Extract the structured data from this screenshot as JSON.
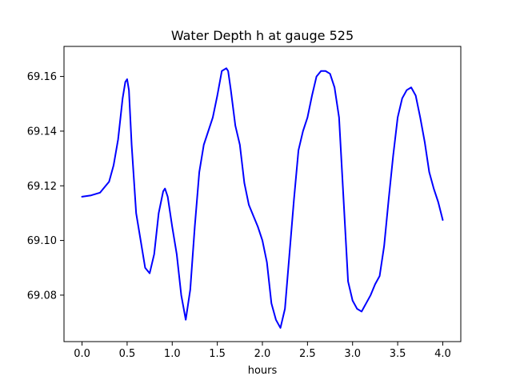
{
  "chart_data": {
    "type": "line",
    "title": "Water Depth h at gauge 525",
    "xlabel": "hours",
    "ylabel": "",
    "xlim": [
      -0.2,
      4.2
    ],
    "ylim": [
      69.063,
      69.171
    ],
    "x_ticks": [
      0.0,
      0.5,
      1.0,
      1.5,
      2.0,
      2.5,
      3.0,
      3.5,
      4.0
    ],
    "x_tick_labels": [
      "0.0",
      "0.5",
      "1.0",
      "1.5",
      "2.0",
      "2.5",
      "3.0",
      "3.5",
      "4.0"
    ],
    "y_ticks": [
      69.08,
      69.1,
      69.12,
      69.14,
      69.16
    ],
    "y_tick_labels": [
      "69.08",
      "69.10",
      "69.12",
      "69.14",
      "69.16"
    ],
    "grid": false,
    "legend": "none",
    "series": [
      {
        "color": "#0000ff",
        "x": [
          0.0,
          0.1,
          0.2,
          0.3,
          0.35,
          0.4,
          0.45,
          0.48,
          0.5,
          0.52,
          0.55,
          0.6,
          0.65,
          0.7,
          0.75,
          0.8,
          0.85,
          0.9,
          0.92,
          0.95,
          1.0,
          1.05,
          1.1,
          1.15,
          1.2,
          1.25,
          1.3,
          1.35,
          1.4,
          1.45,
          1.5,
          1.55,
          1.6,
          1.62,
          1.65,
          1.7,
          1.75,
          1.8,
          1.85,
          1.9,
          1.95,
          2.0,
          2.05,
          2.1,
          2.15,
          2.2,
          2.25,
          2.3,
          2.35,
          2.4,
          2.45,
          2.5,
          2.55,
          2.6,
          2.65,
          2.7,
          2.75,
          2.8,
          2.85,
          2.9,
          2.95,
          3.0,
          3.05,
          3.1,
          3.15,
          3.2,
          3.25,
          3.3,
          3.35,
          3.4,
          3.45,
          3.5,
          3.55,
          3.6,
          3.65,
          3.7,
          3.75,
          3.8,
          3.85,
          3.9,
          3.95,
          4.0
        ],
        "y": [
          69.116,
          69.1165,
          69.1175,
          69.1215,
          69.1275,
          69.137,
          69.152,
          69.158,
          69.159,
          69.155,
          69.135,
          69.11,
          69.1,
          69.09,
          69.088,
          69.095,
          69.11,
          69.118,
          69.119,
          69.116,
          69.105,
          69.095,
          69.08,
          69.071,
          69.082,
          69.105,
          69.125,
          69.135,
          69.14,
          69.145,
          69.153,
          69.162,
          69.163,
          69.162,
          69.155,
          69.142,
          69.135,
          69.121,
          69.113,
          69.109,
          69.105,
          69.1,
          69.092,
          69.077,
          69.071,
          69.068,
          69.075,
          69.095,
          69.115,
          69.133,
          69.14,
          69.145,
          69.153,
          69.16,
          69.162,
          69.162,
          69.161,
          69.156,
          69.145,
          69.115,
          69.085,
          69.078,
          69.075,
          69.074,
          69.077,
          69.08,
          69.084,
          69.087,
          69.098,
          69.115,
          69.131,
          69.145,
          69.152,
          69.155,
          69.156,
          69.153,
          69.145,
          69.136,
          69.125,
          69.119,
          69.114,
          69.1075
        ]
      }
    ]
  }
}
